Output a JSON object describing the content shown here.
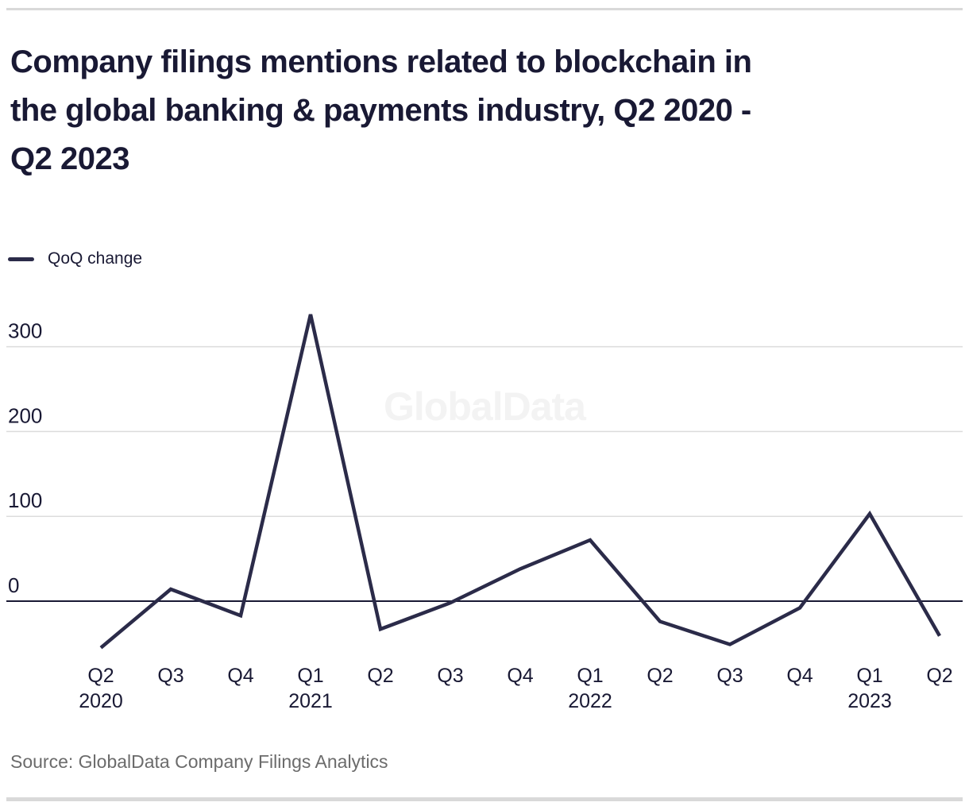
{
  "page": {
    "title": "Company filings mentions related to blockchain in the global banking & payments industry, Q2 2020 - Q2 2023",
    "title_lines": [
      "Company filings mentions related to blockchain in",
      "the global banking & payments industry, Q2 2020 -",
      "Q2 2023"
    ],
    "watermark": "GlobalData",
    "source": "Source: GlobalData Company Filings Analytics"
  },
  "legend": {
    "label": "QoQ change"
  },
  "chart_data": {
    "type": "line",
    "title": "Company filings mentions related to blockchain in the global banking & payments industry, Q2 2020 - Q2 2023",
    "categories": [
      {
        "quarter": "Q2",
        "year": "2020"
      },
      {
        "quarter": "Q3",
        "year": ""
      },
      {
        "quarter": "Q4",
        "year": ""
      },
      {
        "quarter": "Q1",
        "year": "2021"
      },
      {
        "quarter": "Q2",
        "year": ""
      },
      {
        "quarter": "Q3",
        "year": ""
      },
      {
        "quarter": "Q4",
        "year": ""
      },
      {
        "quarter": "Q1",
        "year": "2022"
      },
      {
        "quarter": "Q2",
        "year": ""
      },
      {
        "quarter": "Q3",
        "year": ""
      },
      {
        "quarter": "Q4",
        "year": ""
      },
      {
        "quarter": "Q1",
        "year": "2023"
      },
      {
        "quarter": "Q2",
        "year": ""
      }
    ],
    "series": [
      {
        "name": "QoQ change",
        "values": [
          -55,
          14,
          -17,
          338,
          -33,
          -2,
          38,
          72,
          -24,
          -51,
          -8,
          103,
          -41
        ]
      }
    ],
    "y_ticks": [
      0,
      100,
      200,
      300
    ],
    "ylim": [
      -75,
      350
    ],
    "xlabel": "",
    "ylabel": "",
    "grid": "horizontal",
    "legend_position": "top-left",
    "colors": {
      "line": "#2b2b49",
      "zero_line": "#191934",
      "gridline": "#dcdcdc",
      "tick_label": "#191934",
      "axis_label": "#191934"
    }
  }
}
